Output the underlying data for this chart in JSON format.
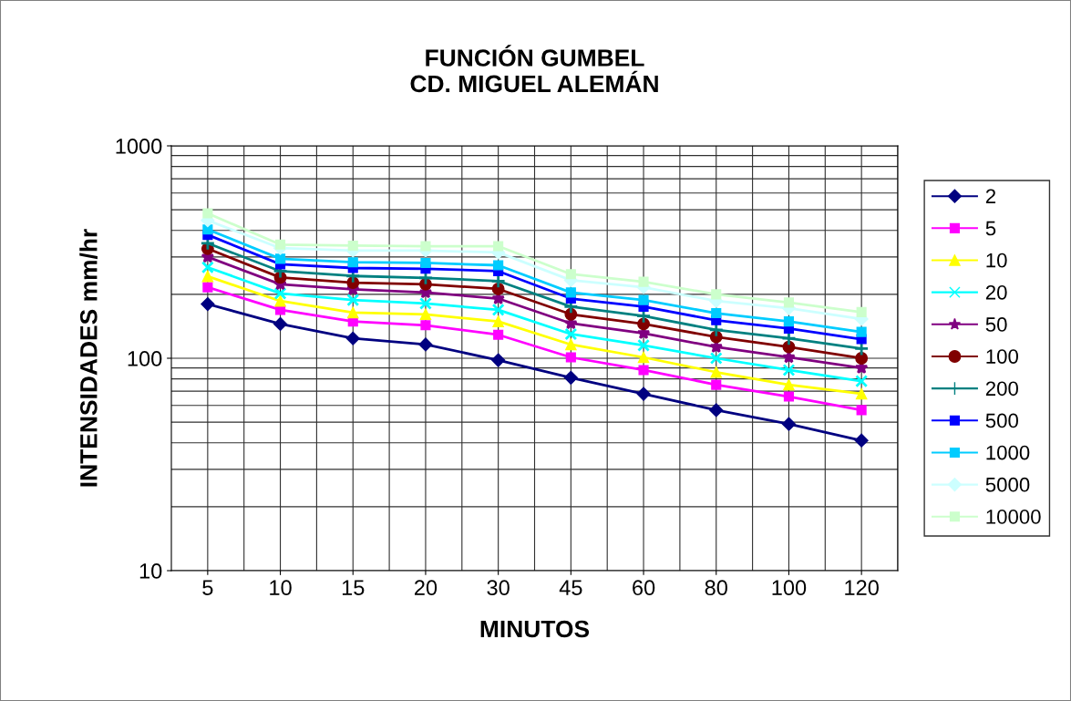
{
  "chart_data": {
    "type": "line",
    "title": "FUNCIÓN GUMBEL\nCD. MIGUEL ALEMÁN",
    "xlabel": "MINUTOS",
    "ylabel": "INTENSIDADES mm/hr",
    "categories": [
      "5",
      "10",
      "15",
      "20",
      "30",
      "45",
      "60",
      "80",
      "100",
      "120"
    ],
    "log": "y",
    "ylim": [
      10,
      1000
    ],
    "yticks": [
      10,
      100,
      1000
    ],
    "grid": true,
    "legend": "right",
    "series": [
      {
        "name": "2",
        "color": "#000080",
        "marker": "diamond",
        "values": [
          180,
          145,
          124,
          116,
          98,
          81,
          68,
          57,
          49,
          41
        ]
      },
      {
        "name": "5",
        "color": "#ff00ff",
        "marker": "square",
        "values": [
          216,
          169,
          149,
          143,
          129,
          101,
          88,
          75,
          66,
          57
        ]
      },
      {
        "name": "10",
        "color": "#ffff00",
        "marker": "triangle",
        "values": [
          243,
          186,
          164,
          161,
          149,
          116,
          101,
          86,
          75,
          68
        ]
      },
      {
        "name": "20",
        "color": "#00ffff",
        "marker": "cross",
        "values": [
          268,
          202,
          188,
          181,
          169,
          130,
          115,
          100,
          88,
          78
        ]
      },
      {
        "name": "50",
        "color": "#800080",
        "marker": "star",
        "values": [
          300,
          223,
          211,
          204,
          191,
          146,
          131,
          113,
          101,
          90
        ]
      },
      {
        "name": "100",
        "color": "#800000",
        "marker": "circle",
        "values": [
          328,
          240,
          227,
          223,
          212,
          161,
          145,
          126,
          113,
          100
        ]
      },
      {
        "name": "200",
        "color": "#008080",
        "marker": "plus",
        "values": [
          348,
          257,
          244,
          239,
          231,
          175,
          158,
          136,
          124,
          111
        ]
      },
      {
        "name": "500",
        "color": "#0000ff",
        "marker": "square",
        "values": [
          381,
          277,
          266,
          264,
          257,
          191,
          175,
          151,
          138,
          123
        ]
      },
      {
        "name": "1000",
        "color": "#00ccff",
        "marker": "square",
        "values": [
          404,
          294,
          283,
          281,
          274,
          204,
          188,
          163,
          149,
          133
        ]
      },
      {
        "name": "5000",
        "color": "#ccffff",
        "marker": "diamond",
        "values": [
          446,
          330,
          321,
          321,
          315,
          233,
          216,
          186,
          172,
          153
        ]
      },
      {
        "name": "10000",
        "color": "#ccffcc",
        "marker": "square",
        "values": [
          481,
          343,
          339,
          337,
          337,
          249,
          229,
          200,
          183,
          165
        ]
      }
    ]
  }
}
